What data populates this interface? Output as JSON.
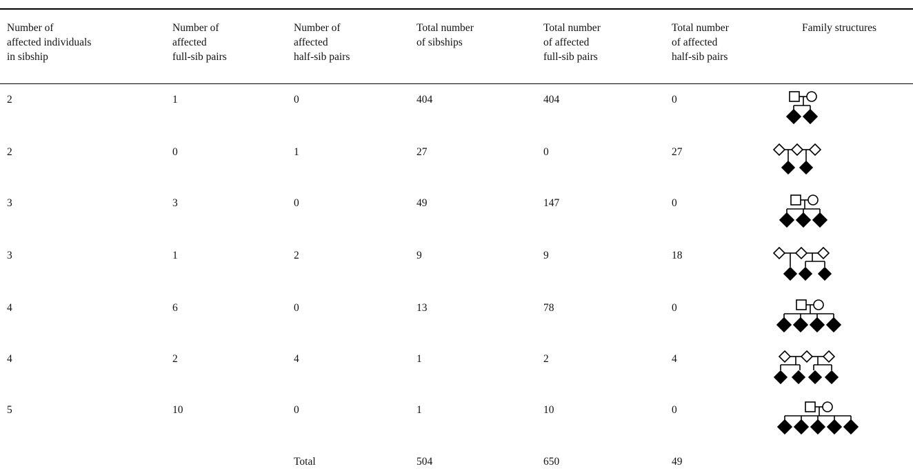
{
  "headers": [
    "Number of\naffected individuals\nin sibship",
    "Number of\naffected\nfull-sib pairs",
    "Number of\naffected\nhalf-sib pairs",
    "Total number\nof sibships",
    "Total number\nof affected\nfull-sib pairs",
    "Total number\nof affected\nhalf-sib pairs",
    "Family structures"
  ],
  "rows": [
    {
      "individuals": "2",
      "full_pairs": "1",
      "half_pairs": "0",
      "sibships": "404",
      "total_full": "404",
      "total_half": "0",
      "structure_icon": "pedigree-full-sib-2"
    },
    {
      "individuals": "2",
      "full_pairs": "0",
      "half_pairs": "1",
      "sibships": "27",
      "total_full": "0",
      "total_half": "27",
      "structure_icon": "pedigree-half-sib-2"
    },
    {
      "individuals": "3",
      "full_pairs": "3",
      "half_pairs": "0",
      "sibships": "49",
      "total_full": "147",
      "total_half": "0",
      "structure_icon": "pedigree-full-sib-3"
    },
    {
      "individuals": "3",
      "full_pairs": "1",
      "half_pairs": "2",
      "sibships": "9",
      "total_full": "9",
      "total_half": "18",
      "structure_icon": "pedigree-half-sib-3"
    },
    {
      "individuals": "4",
      "full_pairs": "6",
      "half_pairs": "0",
      "sibships": "13",
      "total_full": "78",
      "total_half": "0",
      "structure_icon": "pedigree-full-sib-4"
    },
    {
      "individuals": "4",
      "full_pairs": "2",
      "half_pairs": "4",
      "sibships": "1",
      "total_full": "2",
      "total_half": "4",
      "structure_icon": "pedigree-half-sib-4"
    },
    {
      "individuals": "5",
      "full_pairs": "10",
      "half_pairs": "0",
      "sibships": "1",
      "total_full": "10",
      "total_half": "0",
      "structure_icon": "pedigree-full-sib-5"
    }
  ],
  "totals": {
    "label": "Total",
    "sibships": "504",
    "total_full": "650",
    "total_half": "49"
  }
}
